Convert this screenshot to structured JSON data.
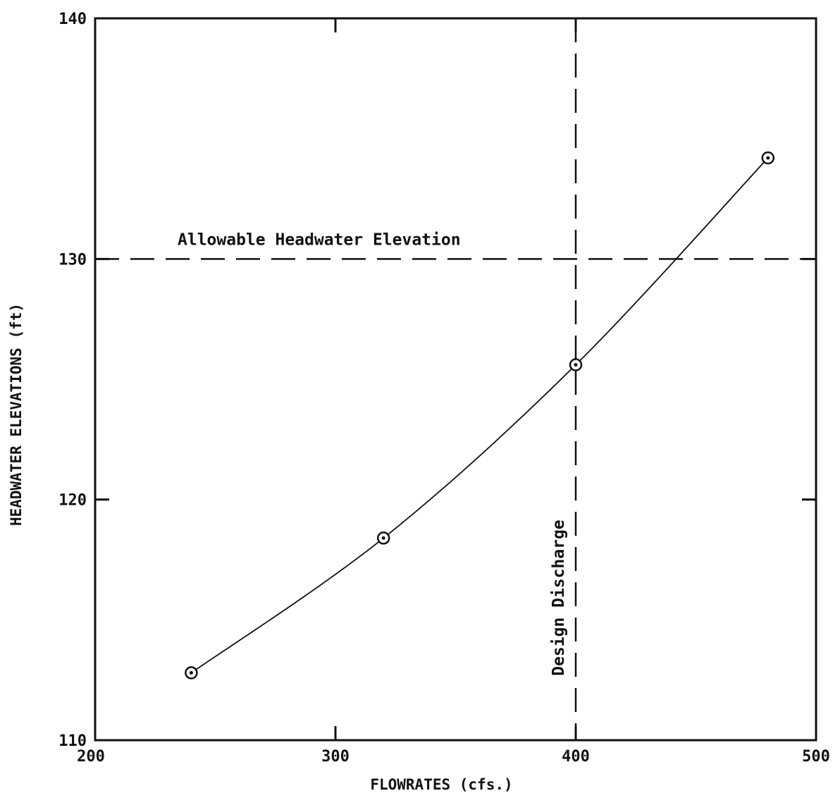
{
  "chart_data": {
    "type": "line",
    "title": "",
    "xlabel": "FLOWRATES (cfs.)",
    "ylabel": "HEADWATER ELEVATIONS (ft)",
    "xlim": [
      200,
      500
    ],
    "ylim": [
      110,
      140
    ],
    "x_ticks": [
      200,
      300,
      400,
      500
    ],
    "y_ticks": [
      110,
      120,
      130,
      140
    ],
    "x_tick_labels": [
      "200",
      "300",
      "400",
      "500"
    ],
    "y_tick_labels": [
      "110",
      "120",
      "130",
      "140"
    ],
    "grid": false,
    "legend": "none",
    "series": [
      {
        "x": [
          240,
          320,
          400,
          480
        ],
        "y": [
          112.8,
          118.4,
          125.6,
          134.2
        ],
        "marker": "circle-dot",
        "color": "#111111"
      }
    ],
    "reference_lines": [
      {
        "orientation": "horizontal",
        "value": 130,
        "style": "dashed",
        "label": "Allowable Headwater Elevation"
      },
      {
        "orientation": "vertical",
        "value": 400,
        "style": "dashed",
        "label": "Design Discharge"
      }
    ]
  }
}
